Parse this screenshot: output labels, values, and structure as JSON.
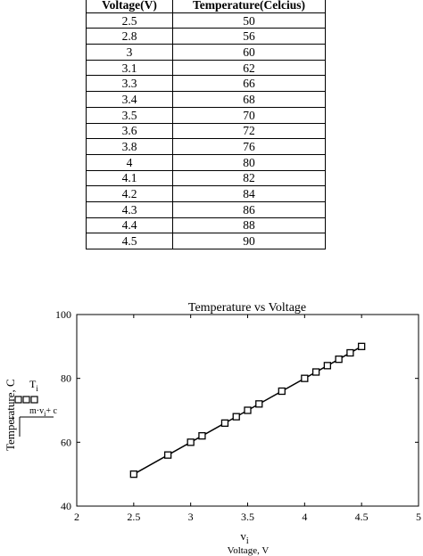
{
  "table": {
    "headers": [
      "Voltage(V)",
      "Temperature(Celcius)"
    ],
    "rows": [
      [
        "2.5",
        "50"
      ],
      [
        "2.8",
        "56"
      ],
      [
        "3",
        "60"
      ],
      [
        "3.1",
        "62"
      ],
      [
        "3.3",
        "66"
      ],
      [
        "3.4",
        "68"
      ],
      [
        "3.5",
        "70"
      ],
      [
        "3.6",
        "72"
      ],
      [
        "3.8",
        "76"
      ],
      [
        "4",
        "80"
      ],
      [
        "4.1",
        "82"
      ],
      [
        "4.2",
        "84"
      ],
      [
        "4.3",
        "86"
      ],
      [
        "4.4",
        "88"
      ],
      [
        "4.5",
        "90"
      ]
    ]
  },
  "chart_data": {
    "type": "scatter",
    "title": "Temperature vs Voltage",
    "xlabel_symbol": "v",
    "xlabel_subscript": "i",
    "xlabel": "Voltage, V",
    "ylabel": "Temperature, C",
    "legend_series_symbol": "T",
    "legend_series_subscript": "i",
    "legend_fit_prefix": "m·v",
    "legend_fit_subscript": "i",
    "legend_fit_suffix": "+ c",
    "legend_index": "i",
    "xlim": [
      2,
      5
    ],
    "ylim": [
      40,
      100
    ],
    "xticks": [
      2,
      2.5,
      3,
      3.5,
      4,
      4.5,
      5
    ],
    "yticks": [
      40,
      60,
      80,
      100
    ],
    "grid": false,
    "series": [
      {
        "marker": "open-square",
        "x": [
          2.5,
          2.8,
          3,
          3.1,
          3.3,
          3.4,
          3.5,
          3.6,
          3.8,
          4,
          4.1,
          4.2,
          4.3,
          4.4,
          4.5
        ],
        "y": [
          50,
          56,
          60,
          62,
          66,
          68,
          70,
          72,
          76,
          80,
          82,
          84,
          86,
          88,
          90
        ]
      }
    ],
    "fit_line": {
      "x": [
        2.5,
        4.5
      ],
      "y": [
        50,
        90
      ]
    }
  }
}
